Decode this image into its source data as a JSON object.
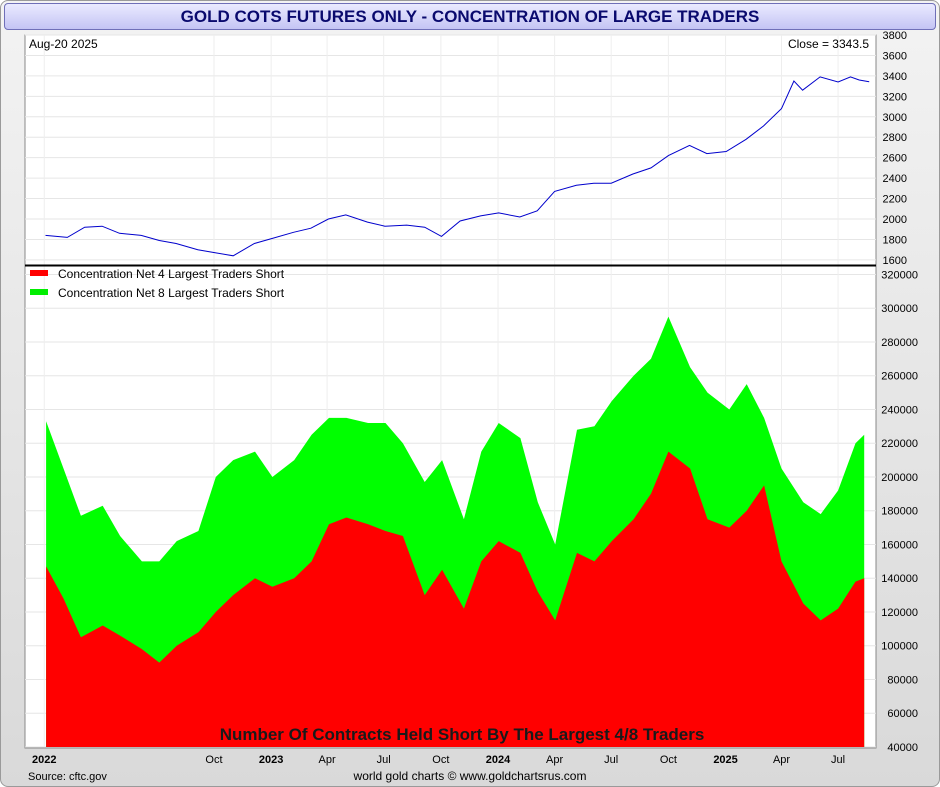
{
  "title": "GOLD COTS FUTURES ONLY - CONCENTRATION OF LARGE TRADERS",
  "source": "Source: cftc.gov",
  "credit": "world gold charts © www.goldchartsrus.com",
  "chart_data": [
    {
      "type": "line",
      "panel": "price",
      "date_label": "Aug-20  2025",
      "close_label": "Close = 3343.5",
      "ylim": [
        1550,
        3800
      ],
      "yticks": [
        "1600",
        "1800",
        "2000",
        "2200",
        "2400",
        "2600",
        "2800",
        "3000",
        "3200",
        "3400",
        "3600",
        "3800"
      ],
      "color": "#0000cc",
      "x": [
        "2022-01-03",
        "2022-02-07",
        "2022-03-07",
        "2022-04-04",
        "2022-05-02",
        "2022-06-06",
        "2022-07-05",
        "2022-08-01",
        "2022-09-05",
        "2022-10-03",
        "2022-11-01",
        "2022-12-05",
        "2023-01-03",
        "2023-02-06",
        "2023-03-06",
        "2023-04-03",
        "2023-05-01",
        "2023-06-05",
        "2023-07-03",
        "2023-08-07",
        "2023-09-05",
        "2023-10-02",
        "2023-11-01",
        "2023-12-04",
        "2024-01-02",
        "2024-02-05",
        "2024-03-04",
        "2024-04-01",
        "2024-05-06",
        "2024-06-03",
        "2024-07-01",
        "2024-08-05",
        "2024-09-03",
        "2024-10-01",
        "2024-11-04",
        "2024-12-02",
        "2025-01-02",
        "2025-02-03",
        "2025-03-03",
        "2025-04-01",
        "2025-04-21",
        "2025-05-05",
        "2025-06-02",
        "2025-07-01",
        "2025-07-21",
        "2025-08-04",
        "2025-08-20"
      ],
      "y": [
        1840,
        1820,
        1920,
        1930,
        1860,
        1840,
        1790,
        1760,
        1700,
        1670,
        1640,
        1760,
        1810,
        1870,
        1910,
        2000,
        2040,
        1970,
        1930,
        1940,
        1920,
        1830,
        1980,
        2030,
        2060,
        2020,
        2080,
        2270,
        2330,
        2350,
        2350,
        2440,
        2500,
        2620,
        2720,
        2640,
        2660,
        2780,
        2910,
        3080,
        3350,
        3260,
        3390,
        3340,
        3390,
        3360,
        3343.5
      ]
    },
    {
      "type": "area",
      "panel": "concentration",
      "title": "Number Of Contracts Held Short By The Largest 4/8 Traders",
      "ylim": [
        40000,
        325000
      ],
      "yticks": [
        "40000",
        "60000",
        "80000",
        "100000",
        "120000",
        "140000",
        "160000",
        "180000",
        "200000",
        "220000",
        "240000",
        "260000",
        "280000",
        "300000",
        "320000"
      ],
      "xticks": [
        "2022",
        "Oct",
        "2023",
        "Apr",
        "Jul",
        "Oct",
        "2024",
        "Apr",
        "Jul",
        "Oct",
        "2025",
        "Apr",
        "Jul"
      ],
      "legend_placement": "top-left",
      "x": [
        "2022-01-04",
        "2022-02-01",
        "2022-03-01",
        "2022-04-05",
        "2022-05-03",
        "2022-06-07",
        "2022-07-05",
        "2022-08-02",
        "2022-09-06",
        "2022-10-04",
        "2022-11-01",
        "2022-12-06",
        "2023-01-03",
        "2023-02-07",
        "2023-03-07",
        "2023-04-04",
        "2023-05-02",
        "2023-06-06",
        "2023-07-04",
        "2023-08-01",
        "2023-09-05",
        "2023-10-03",
        "2023-11-07",
        "2023-12-05",
        "2024-01-02",
        "2024-02-06",
        "2024-03-05",
        "2024-04-02",
        "2024-05-07",
        "2024-06-04",
        "2024-07-02",
        "2024-08-06",
        "2024-09-03",
        "2024-10-01",
        "2024-11-05",
        "2024-12-03",
        "2025-01-07",
        "2025-02-04",
        "2025-03-04",
        "2025-04-01",
        "2025-05-06",
        "2025-06-03",
        "2025-07-01",
        "2025-07-29",
        "2025-08-12"
      ],
      "series": [
        {
          "name": "Concentration Net 4 Largest Traders Short",
          "color": "#ff0000",
          "values": [
            147000,
            128000,
            105000,
            112000,
            106000,
            98000,
            90000,
            100000,
            108000,
            120000,
            130000,
            140000,
            135000,
            140000,
            150000,
            172000,
            176000,
            172000,
            168000,
            165000,
            130000,
            145000,
            122000,
            150000,
            162000,
            155000,
            132000,
            115000,
            155000,
            150000,
            162000,
            175000,
            190000,
            215000,
            205000,
            175000,
            170000,
            180000,
            195000,
            150000,
            125000,
            115000,
            122000,
            138000,
            140000
          ]
        },
        {
          "name": "Concentration Net 8 Largest Traders Short",
          "color": "#00ff00",
          "values": [
            233000,
            205000,
            177000,
            183000,
            165000,
            150000,
            150000,
            162000,
            168000,
            200000,
            210000,
            215000,
            200000,
            210000,
            225000,
            235000,
            235000,
            232000,
            232000,
            220000,
            197000,
            210000,
            175000,
            215000,
            232000,
            223000,
            185000,
            160000,
            228000,
            230000,
            245000,
            260000,
            270000,
            295000,
            265000,
            250000,
            240000,
            255000,
            235000,
            205000,
            185000,
            178000,
            192000,
            220000,
            225000
          ]
        }
      ]
    }
  ]
}
